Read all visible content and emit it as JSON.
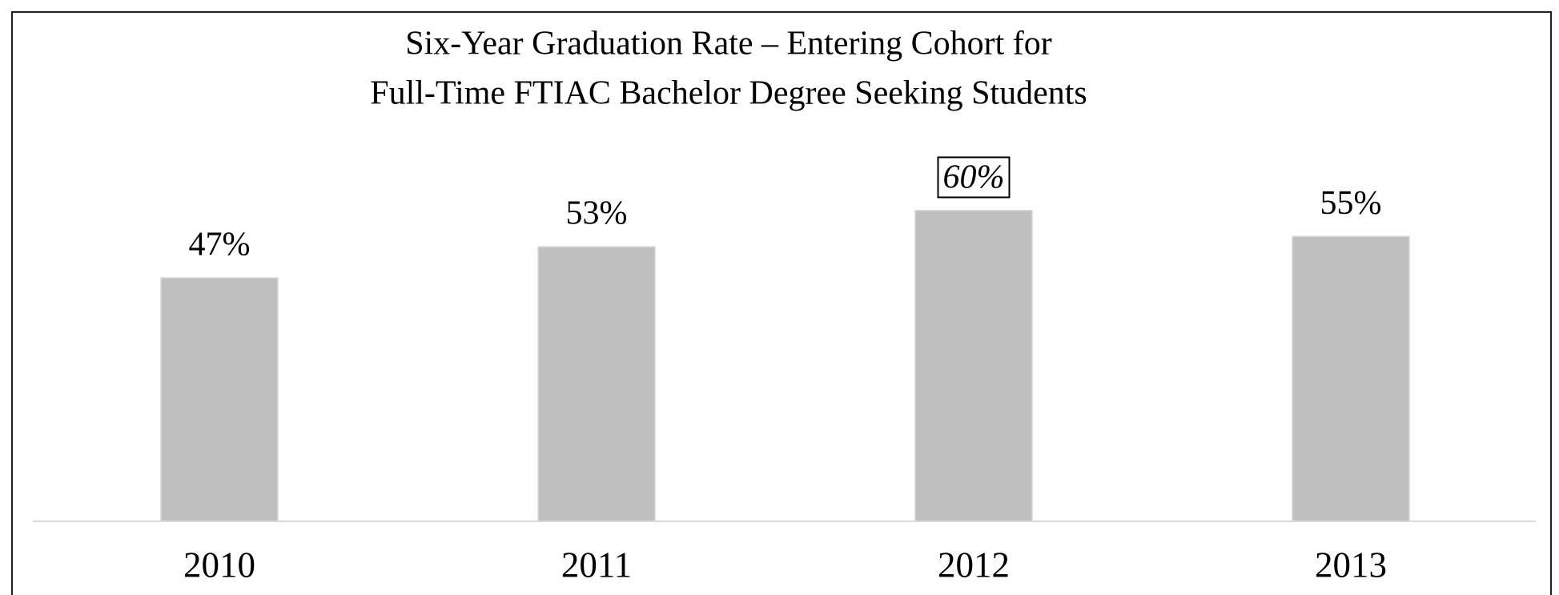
{
  "chart_data": {
    "type": "bar",
    "title": [
      "Six-Year Graduation Rate – Entering Cohort for",
      "Full-Time FTIAC Bachelor Degree Seeking Students"
    ],
    "categories": [
      "2010",
      "2011",
      "2012",
      "2013"
    ],
    "values": [
      47,
      53,
      60,
      55
    ],
    "value_labels": [
      "47%",
      "53%",
      "60%",
      "55%"
    ],
    "color": "#bfbfbf",
    "ylim": [
      0,
      100
    ],
    "highlight": 2
  }
}
